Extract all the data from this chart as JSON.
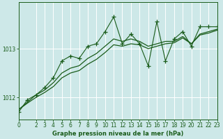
{
  "xlabel": "Graphe pression niveau de la mer (hPa)",
  "bg_color": "#cde8e8",
  "grid_color": "#b0d8d8",
  "line_color": "#1a5c1a",
  "hours": [
    0,
    1,
    2,
    3,
    4,
    5,
    6,
    7,
    8,
    9,
    10,
    11,
    12,
    13,
    14,
    15,
    16,
    17,
    18,
    19,
    20,
    21,
    22,
    23
  ],
  "pressure_main": [
    1011.7,
    1011.95,
    1012.05,
    1012.2,
    1012.4,
    1012.75,
    1012.85,
    1012.8,
    1013.05,
    1013.1,
    1013.35,
    1013.65,
    1013.1,
    1013.3,
    1013.1,
    1012.65,
    1013.55,
    1012.75,
    1013.2,
    1013.35,
    1013.05,
    1013.45,
    1013.45,
    1013.45
  ],
  "trend1": [
    1011.75,
    1011.9,
    1012.05,
    1012.15,
    1012.3,
    1012.5,
    1012.6,
    1012.65,
    1012.8,
    1012.9,
    1013.05,
    1013.2,
    1013.15,
    1013.2,
    1013.15,
    1013.05,
    1013.1,
    1013.15,
    1013.15,
    1013.25,
    1013.1,
    1013.3,
    1013.35,
    1013.4
  ],
  "trend2": [
    1011.75,
    1011.88,
    1012.0,
    1012.1,
    1012.22,
    1012.4,
    1012.5,
    1012.55,
    1012.68,
    1012.78,
    1012.92,
    1013.08,
    1013.05,
    1013.1,
    1013.08,
    1013.0,
    1013.05,
    1013.1,
    1013.12,
    1013.22,
    1013.1,
    1013.28,
    1013.32,
    1013.38
  ],
  "ylim": [
    1011.55,
    1013.95
  ],
  "ytick_vals": [
    1012.0,
    1013.0
  ],
  "ytick_labels": [
    "1012",
    "1013"
  ],
  "xtick_vals": [
    0,
    2,
    3,
    4,
    5,
    6,
    7,
    8,
    9,
    10,
    11,
    12,
    13,
    14,
    15,
    16,
    17,
    18,
    19,
    20,
    21,
    22,
    23
  ],
  "xlim": [
    0,
    23
  ],
  "xlabel_fontsize": 6.0,
  "tick_fontsize": 5.5
}
